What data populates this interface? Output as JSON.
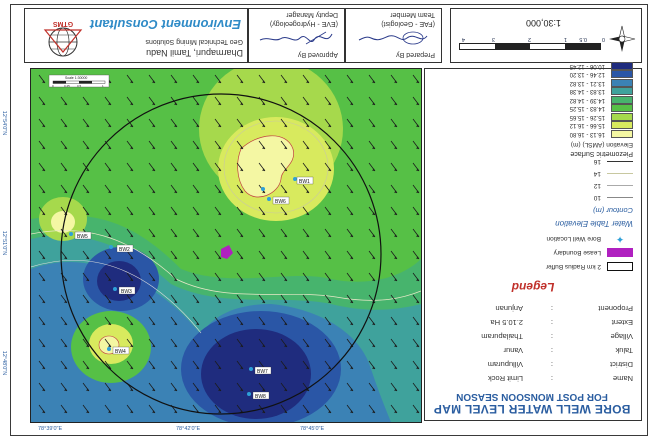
{
  "header": {
    "company_name": "Environment Consultant",
    "company_line1": "Geo Technical Mining Solutions",
    "company_line2": "Dharmapuri, Tamil Nadu",
    "logo_text": "GTMS",
    "approved_role": "Deputy Manager",
    "approved_dept": "(EVE - Hydrogeology)",
    "approved_caption": "Approved By",
    "prepared_role": "Team Member",
    "prepared_dept": "(FAE - Geologist)",
    "prepared_caption": "Prepared By",
    "scale_text": "1:30,000",
    "scale_ticks": [
      "0",
      "0.5",
      "1",
      "2",
      "3",
      "4"
    ]
  },
  "map": {
    "inset_scale_label": "Scale 1:30000",
    "inset_scale_ticks": [
      "0",
      "0.25",
      "0.5",
      "1"
    ],
    "wells": [
      {
        "id": "BW1"
      },
      {
        "id": "BW2"
      },
      {
        "id": "BW3"
      },
      {
        "id": "BW4"
      },
      {
        "id": "BW5"
      },
      {
        "id": "BW6"
      },
      {
        "id": "BW7"
      },
      {
        "id": "BW8"
      }
    ],
    "left_coords": [
      "12°54'0\"N",
      "12°51'0\"N",
      "12°48'0\"N"
    ],
    "bottom_coords": [
      "78°39'0\"E",
      "78°42'0\"E",
      "78°45'0\"E"
    ]
  },
  "legend": {
    "classes_title": "Piezometric Surface",
    "classes_subtitle": "Elevation (AMSL) (m)",
    "classes": [
      {
        "label": "10.06 - 12.45",
        "color": "#1f2c7e"
      },
      {
        "label": "12.46 - 13.20",
        "color": "#2a56a6"
      },
      {
        "label": "13.21 - 13.82",
        "color": "#3b82b5"
      },
      {
        "label": "13.83 - 14.38",
        "color": "#3fa29c"
      },
      {
        "label": "14.39 - 14.82",
        "color": "#47b46d"
      },
      {
        "label": "14.83 - 15.25",
        "color": "#56c046"
      },
      {
        "label": "15.26 - 15.65",
        "color": "#a6d94c"
      },
      {
        "label": "15.66 - 16.12",
        "color": "#d8ea5e"
      },
      {
        "label": "16.13 - 16.80",
        "color": "#f4f7a3"
      }
    ],
    "contour_title": "Contour (m)",
    "contour_levels": [
      "10",
      "12",
      "14",
      "16"
    ],
    "water_table_label": "Water Table Elevation",
    "bore_well_label": "Bore Well Location",
    "lease_label": "Lease Boundary",
    "radius_label": "2 km Radius Buffer",
    "legend_title": "Legend",
    "info_rows": [
      {
        "key": "Name",
        "value": "Limit Rock"
      },
      {
        "key": "District",
        "value": "Villupuram"
      },
      {
        "key": "Taluk",
        "value": "Vanur"
      },
      {
        "key": "Village",
        "value": "Thailapuram"
      },
      {
        "key": "Extent",
        "value": "2.10.5 Ha"
      },
      {
        "key": "Proponent",
        "value": "Anjunan"
      }
    ],
    "map_title_line1": "BORE WELL WATER LEVEL MAP",
    "map_title_line2": "FOR POST MONSOON SEASON"
  }
}
